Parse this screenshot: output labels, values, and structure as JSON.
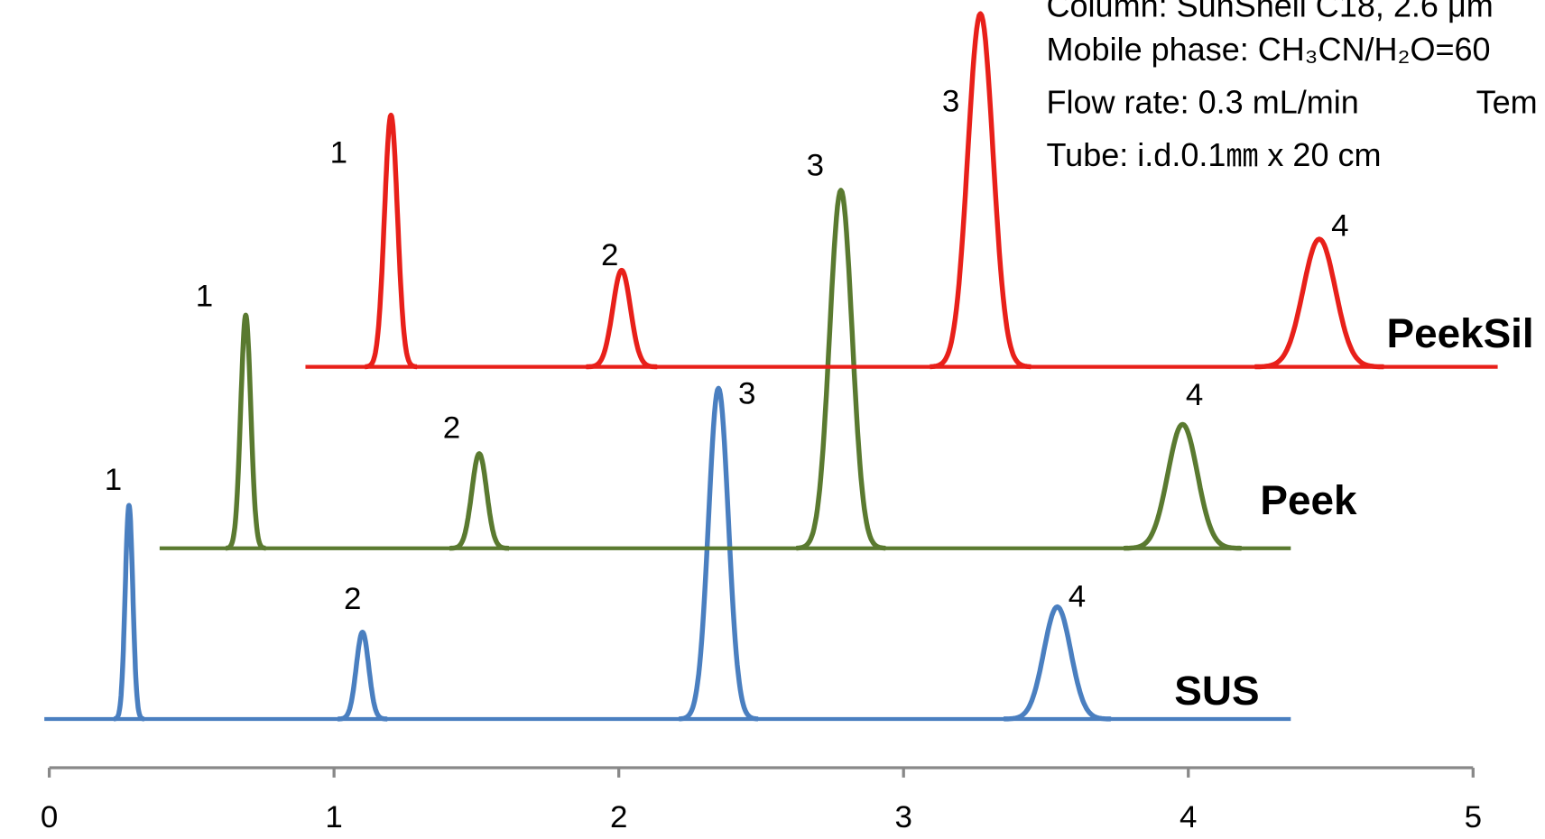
{
  "chart_data": {
    "type": "chromatogram",
    "annotations": [
      "Column: SunShell C18, 2.6 μm",
      "Mobile phase: CH₃CN/H₂O=60",
      "Flow rate: 0.3 mL/min",
      "Tem",
      "Tube: i.d.0.1㎜ x 20 cm"
    ],
    "xlim": [
      0,
      5
    ],
    "xticks": [
      0,
      1,
      2,
      3,
      4,
      5
    ],
    "ylim": [
      0,
      400
    ],
    "series": [
      {
        "name": "SUS",
        "color": "#4a7fc0",
        "x": [
          0.28,
          1.1,
          2.35,
          3.54
        ],
        "values": [
          219,
          89,
          339,
          115
        ],
        "peak_labels": [
          "1",
          "2",
          "3",
          "4"
        ]
      },
      {
        "name": "Peek",
        "color": "#5a7a30",
        "x": [
          0.69,
          1.51,
          2.78,
          3.98
        ],
        "values": [
          239,
          97,
          367,
          127
        ],
        "peak_labels": [
          "1",
          "2",
          "3",
          "4"
        ]
      },
      {
        "name": "PeekSil",
        "color": "#e8201a",
        "x": [
          1.2,
          2.01,
          3.27,
          4.46
        ],
        "values": [
          258,
          99,
          362,
          131
        ],
        "peak_labels": [
          "1",
          "2",
          "3",
          "4"
        ]
      }
    ]
  }
}
